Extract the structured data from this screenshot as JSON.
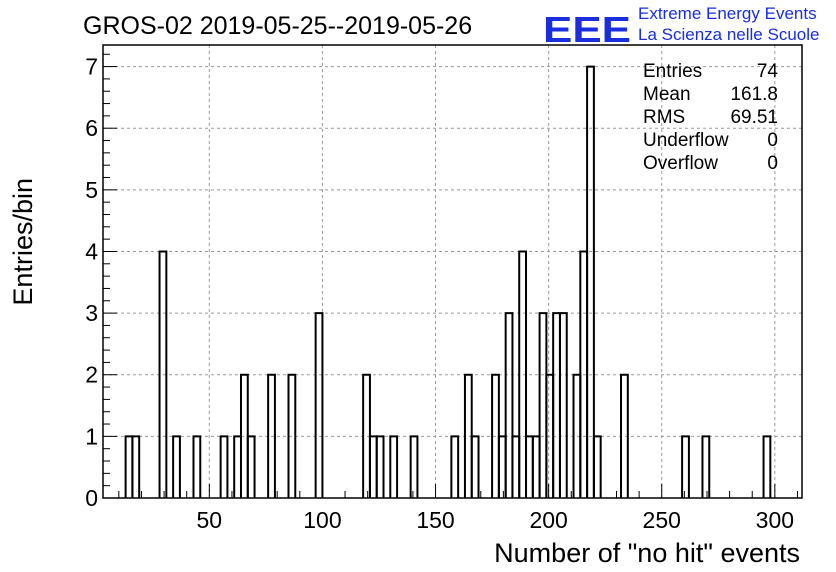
{
  "chart_data": {
    "type": "bar",
    "title": "GROS-02 2019-05-25--2019-05-26",
    "xlabel": "Number of \"no hit\" events",
    "ylabel": "Entries/bin",
    "xlim": [
      3,
      312
    ],
    "ylim": [
      0,
      7.35
    ],
    "bin_width": 3,
    "grid": true,
    "x_ticks": [
      50,
      100,
      150,
      200,
      250,
      300
    ],
    "y_ticks": [
      0,
      1,
      2,
      3,
      4,
      5,
      6,
      7
    ],
    "bins": [
      {
        "x": 13,
        "y": 1
      },
      {
        "x": 16,
        "y": 1
      },
      {
        "x": 28,
        "y": 4
      },
      {
        "x": 34,
        "y": 1
      },
      {
        "x": 43,
        "y": 1
      },
      {
        "x": 55,
        "y": 1
      },
      {
        "x": 61,
        "y": 1
      },
      {
        "x": 64,
        "y": 2
      },
      {
        "x": 67,
        "y": 1
      },
      {
        "x": 76,
        "y": 2
      },
      {
        "x": 85,
        "y": 2
      },
      {
        "x": 97,
        "y": 3
      },
      {
        "x": 118,
        "y": 2
      },
      {
        "x": 121,
        "y": 1
      },
      {
        "x": 124,
        "y": 1
      },
      {
        "x": 130,
        "y": 1
      },
      {
        "x": 139,
        "y": 1
      },
      {
        "x": 157,
        "y": 1
      },
      {
        "x": 163,
        "y": 2
      },
      {
        "x": 166,
        "y": 1
      },
      {
        "x": 175,
        "y": 2
      },
      {
        "x": 178,
        "y": 1
      },
      {
        "x": 181,
        "y": 3
      },
      {
        "x": 184,
        "y": 1
      },
      {
        "x": 187,
        "y": 4
      },
      {
        "x": 190,
        "y": 1
      },
      {
        "x": 193,
        "y": 1
      },
      {
        "x": 196,
        "y": 3
      },
      {
        "x": 199,
        "y": 2
      },
      {
        "x": 202,
        "y": 3
      },
      {
        "x": 205,
        "y": 3
      },
      {
        "x": 211,
        "y": 2
      },
      {
        "x": 214,
        "y": 4
      },
      {
        "x": 217,
        "y": 7
      },
      {
        "x": 220,
        "y": 1
      },
      {
        "x": 232,
        "y": 2
      },
      {
        "x": 259,
        "y": 1
      },
      {
        "x": 268,
        "y": 1
      },
      {
        "x": 295,
        "y": 1
      }
    ],
    "stats": [
      {
        "label": "Entries",
        "value": "74"
      },
      {
        "label": "Mean",
        "value": "161.8"
      },
      {
        "label": "RMS",
        "value": "69.51"
      },
      {
        "label": "Underflow",
        "value": "0"
      },
      {
        "label": "Overflow",
        "value": "0"
      }
    ]
  },
  "logo": {
    "mark": "EEE",
    "line1": "Extreme Energy Events",
    "line2": "La Scienza nelle Scuole",
    "color": "#1a2ee0"
  }
}
